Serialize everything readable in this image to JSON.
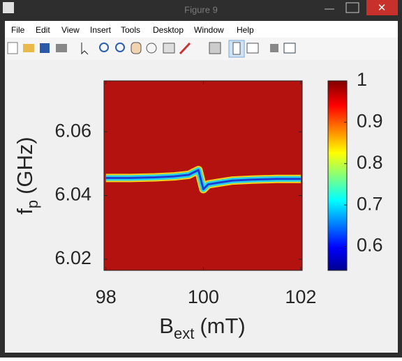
{
  "window": {
    "title": "Figure 9",
    "menu": [
      "File",
      "Edit",
      "View",
      "Insert",
      "Tools",
      "Desktop",
      "Window",
      "Help"
    ]
  },
  "chart_data": {
    "type": "heatmap",
    "xlabel": {
      "base": "B",
      "sub": "ext",
      "unit": "(mT)"
    },
    "ylabel": {
      "base": "f",
      "sub": "p",
      "unit": "(GHz)"
    },
    "x": [
      98,
      98.5,
      99,
      99.4,
      99.7,
      99.9,
      100.0,
      100.1,
      100.3,
      100.6,
      101,
      101.5,
      102
    ],
    "values": [
      6.0455,
      6.0455,
      6.0457,
      6.046,
      6.0465,
      6.048,
      6.042,
      6.0435,
      6.044,
      6.0447,
      6.045,
      6.0452,
      6.0452
    ],
    "xlim": [
      97.96,
      102.03
    ],
    "xticks": [
      98,
      100,
      102
    ],
    "ylim": [
      6.0165,
      6.076
    ],
    "yticks": [
      6.02,
      6.04,
      6.06
    ],
    "clim": [
      0.542,
      1.0
    ],
    "cticks": [
      0.6,
      0.7,
      0.8,
      0.9,
      1
    ]
  }
}
